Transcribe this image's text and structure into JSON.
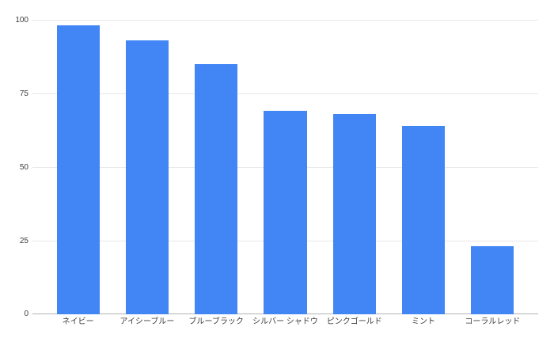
{
  "page": {
    "background": "#ffffff"
  },
  "chart_data": {
    "type": "bar",
    "title": "",
    "categories": [
      "ネイビー",
      "アイシーブルー",
      "ブルーブラック",
      "シルバー シャドウ",
      "ピンクゴールド",
      "ミント",
      "コーラルレッド"
    ],
    "values": [
      98,
      93,
      85,
      69,
      68,
      64,
      23
    ],
    "xlabel": "",
    "ylabel": "",
    "ylim": [
      0,
      100
    ],
    "yticks": [
      0,
      25,
      50,
      75,
      100
    ],
    "grid": true,
    "legend": "none",
    "colors": {
      "bar": "#4285f4",
      "gridline": "#e8e8e8",
      "baseline": "#b3b3b3",
      "axis_label": "#3c3c3c"
    }
  }
}
